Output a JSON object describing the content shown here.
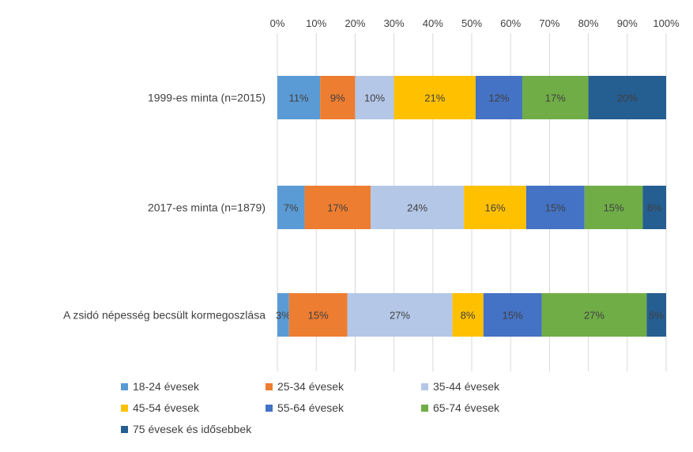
{
  "chart_data": {
    "type": "bar",
    "orientation": "horizontal",
    "stacked": "percent",
    "title": "",
    "xlabel": "",
    "ylabel": "",
    "xlim": [
      0,
      100
    ],
    "x_ticks": [
      "0%",
      "10%",
      "20%",
      "30%",
      "40%",
      "50%",
      "60%",
      "70%",
      "80%",
      "90%",
      "100%"
    ],
    "x_axis_position": "top",
    "grid": true,
    "legend_position": "bottom",
    "categories": [
      "1999-es minta (n=2015)",
      "2017-es minta (n=1879)",
      "A zsidó népesség becsült kormegoszlása"
    ],
    "series": [
      {
        "name": "18-24 évesek",
        "color": "#5b9bd5",
        "values": [
          11,
          7,
          3
        ],
        "labels": [
          "11%",
          "7%",
          "3%"
        ]
      },
      {
        "name": "25-34 évesek",
        "color": "#ed7d31",
        "values": [
          9,
          17,
          15
        ],
        "labels": [
          "9%",
          "17%",
          "15%"
        ]
      },
      {
        "name": "35-44 évesek",
        "color": "#b4c7e7",
        "values": [
          10,
          24,
          27
        ],
        "labels": [
          "10%",
          "24%",
          "27%"
        ]
      },
      {
        "name": "45-54 évesek",
        "color": "#ffc000",
        "values": [
          21,
          16,
          8
        ],
        "labels": [
          "21%",
          "16%",
          "8%"
        ]
      },
      {
        "name": "55-64 évesek",
        "color": "#4472c4",
        "values": [
          12,
          15,
          15
        ],
        "labels": [
          "12%",
          "15%",
          "15%"
        ]
      },
      {
        "name": "65-74 évesek",
        "color": "#70ad47",
        "values": [
          17,
          15,
          27
        ],
        "labels": [
          "17%",
          "15%",
          "27%"
        ]
      },
      {
        "name": "75 évesek és idősebbek",
        "color": "#255e91",
        "values": [
          20,
          6,
          5
        ],
        "labels": [
          "20%",
          "6%",
          "5%"
        ]
      }
    ]
  }
}
